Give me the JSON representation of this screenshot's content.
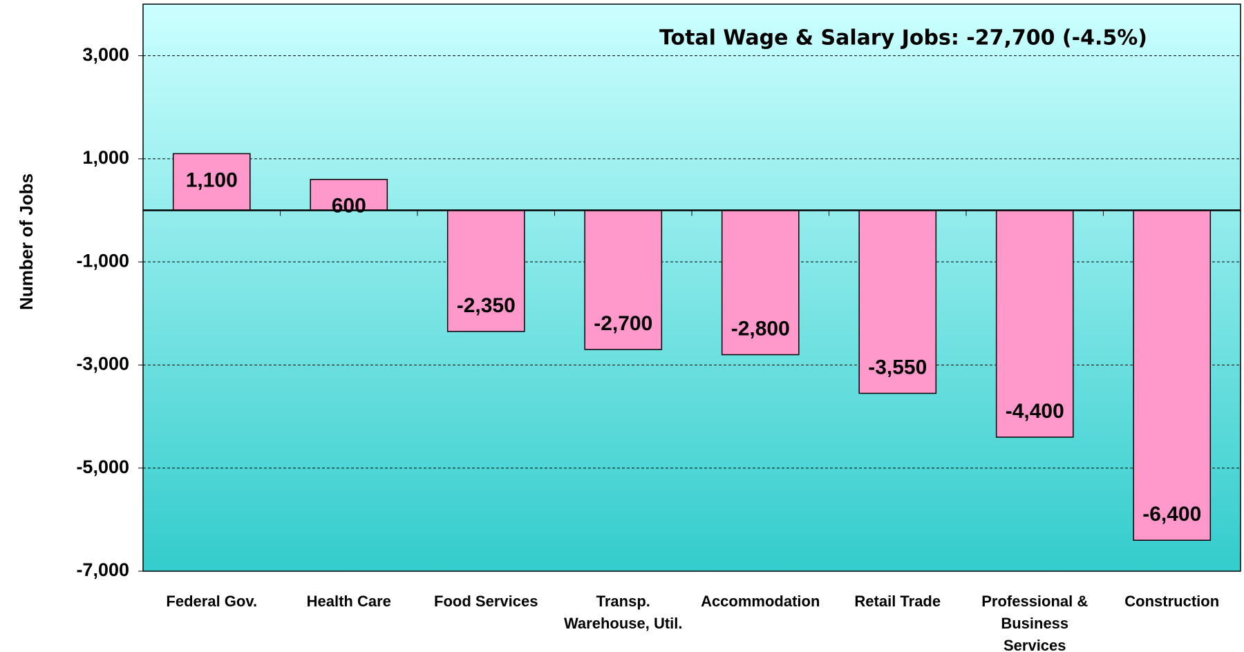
{
  "chart_data": {
    "type": "bar",
    "annotation": "Total Wage & Salary Jobs: -27,700  (-4.5%)",
    "y_label": "Number of Jobs",
    "categories": [
      "Federal Gov.",
      "Health Care",
      "Food Services",
      "Transp.\nWarehouse, Util.",
      "Accommodation",
      "Retail Trade",
      "Professional &\nBusiness\nServices",
      "Construction"
    ],
    "values": [
      1100,
      600,
      -2350,
      -2700,
      -2800,
      -3550,
      -4400,
      -6400
    ],
    "value_labels": [
      "1,100",
      "600",
      "-2,350",
      "-2,700",
      "-2,800",
      "-3,550",
      "-4,400",
      "-6,400"
    ],
    "color": "#ff99cc",
    "ylim": [
      -7000,
      4000
    ],
    "yticks": [
      {
        "value": 3000,
        "label": "3,000"
      },
      {
        "value": 1000,
        "label": "1,000"
      },
      {
        "value": -1000,
        "label": "-1,000"
      },
      {
        "value": -3000,
        "label": "-3,000"
      },
      {
        "value": -5000,
        "label": "-5,000"
      },
      {
        "value": -7000,
        "label": "-7,000"
      }
    ],
    "grid": true
  }
}
